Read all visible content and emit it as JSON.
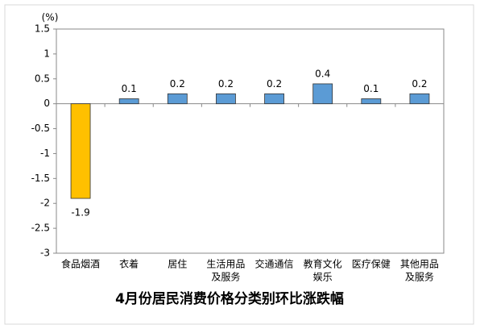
{
  "chart_data": {
    "type": "bar",
    "title": "4月份居民消费价格分类别环比涨跌幅",
    "unit": "(%)",
    "categories": [
      [
        "食品烟酒"
      ],
      [
        "衣着"
      ],
      [
        "居住"
      ],
      [
        "生活用品",
        "及服务"
      ],
      [
        "交通通信"
      ],
      [
        "教育文化",
        "娱乐"
      ],
      [
        "医疗保健"
      ],
      [
        "其他用品",
        "及服务"
      ]
    ],
    "values": [
      -1.9,
      0.1,
      0.2,
      0.2,
      0.2,
      0.4,
      0.1,
      0.2
    ],
    "colors": [
      "#ffc000",
      "#5b9bd5",
      "#5b9bd5",
      "#5b9bd5",
      "#5b9bd5",
      "#5b9bd5",
      "#5b9bd5",
      "#5b9bd5"
    ],
    "ylim": [
      -3,
      1.5
    ],
    "yticks": [
      -3,
      -2.5,
      -2,
      -1.5,
      -1,
      -0.5,
      0,
      0.5,
      1,
      1.5
    ],
    "grid": false
  }
}
